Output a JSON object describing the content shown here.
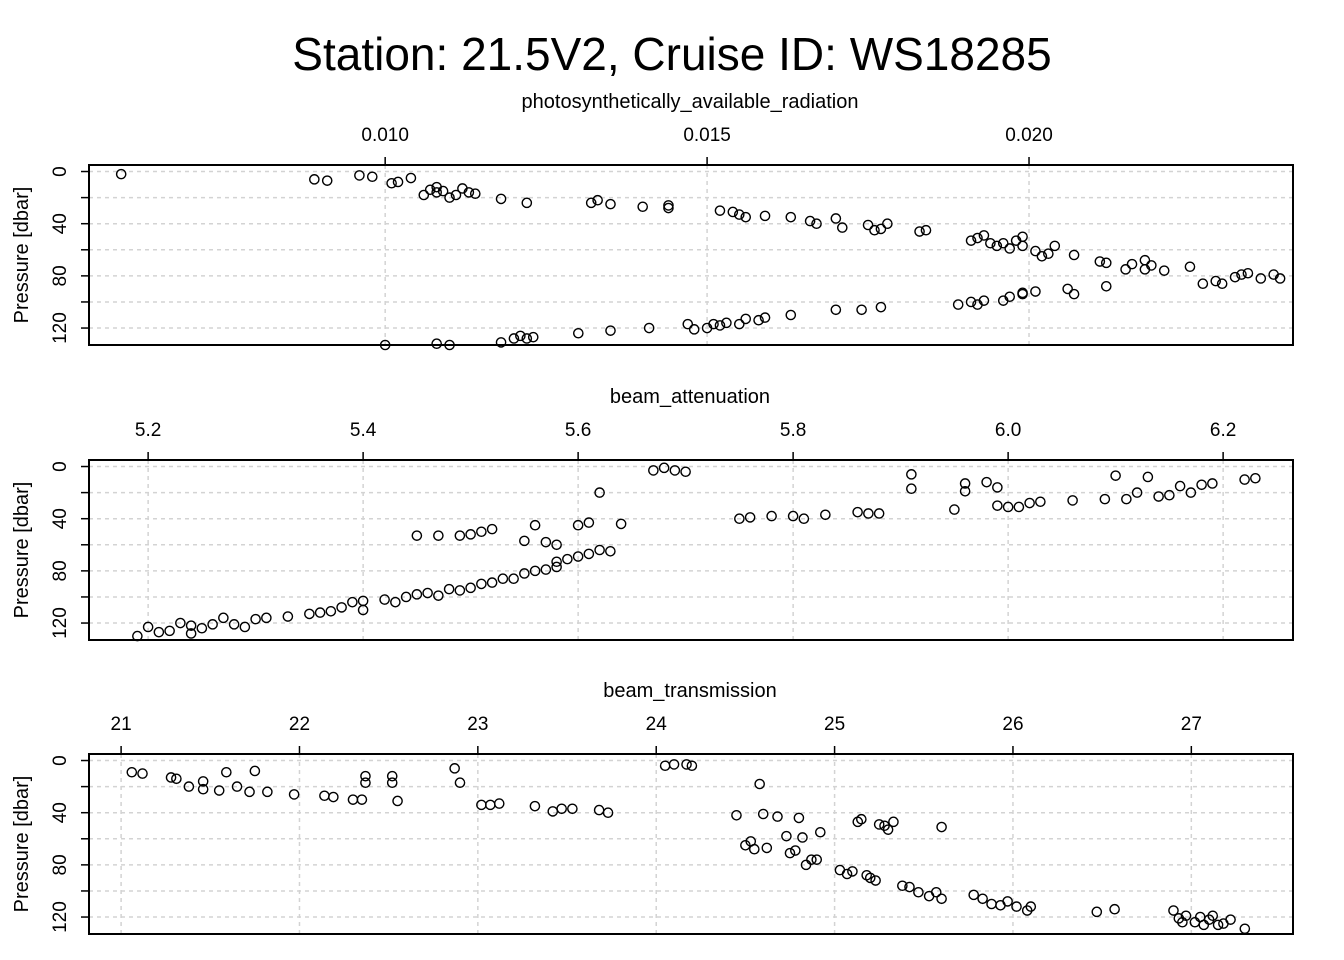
{
  "title": "Station: 21.5V2, Cruise ID: WS18285",
  "chart_data": [
    {
      "type": "scatter",
      "title": "photosynthetically_available_radiation",
      "xlabel": "photosynthetically_available_radiation",
      "ylabel": "Pressure [dbar]",
      "x_ticks": [
        0.01,
        0.015,
        0.02
      ],
      "x_tick_labels": [
        "0.010",
        "0.015",
        "0.020"
      ],
      "y_ticks": [
        0,
        20,
        40,
        60,
        80,
        100,
        120
      ],
      "y_tick_labels": [
        "0",
        "40",
        "80",
        "120"
      ],
      "ylim": [
        133,
        -5
      ],
      "xlim": [
        0.0054,
        0.0241
      ],
      "grid": true,
      "points": [
        [
          0.0059,
          2
        ],
        [
          0.0089,
          6
        ],
        [
          0.0091,
          7
        ],
        [
          0.0096,
          3
        ],
        [
          0.0098,
          4
        ],
        [
          0.0101,
          9
        ],
        [
          0.0102,
          8
        ],
        [
          0.0104,
          5
        ],
        [
          0.0106,
          18
        ],
        [
          0.0107,
          14
        ],
        [
          0.0108,
          12
        ],
        [
          0.0108,
          16
        ],
        [
          0.0109,
          15
        ],
        [
          0.011,
          20
        ],
        [
          0.0111,
          18
        ],
        [
          0.0112,
          13
        ],
        [
          0.0113,
          16
        ],
        [
          0.0114,
          17
        ],
        [
          0.0118,
          21
        ],
        [
          0.0122,
          24
        ],
        [
          0.0132,
          24
        ],
        [
          0.0133,
          22
        ],
        [
          0.0135,
          25
        ],
        [
          0.014,
          27
        ],
        [
          0.0144,
          26
        ],
        [
          0.0144,
          28
        ],
        [
          0.0152,
          30
        ],
        [
          0.0154,
          31
        ],
        [
          0.0155,
          33
        ],
        [
          0.0156,
          35
        ],
        [
          0.0159,
          34
        ],
        [
          0.0163,
          35
        ],
        [
          0.0166,
          38
        ],
        [
          0.0167,
          40
        ],
        [
          0.017,
          36
        ],
        [
          0.0171,
          43
        ],
        [
          0.0175,
          41
        ],
        [
          0.0176,
          45
        ],
        [
          0.0177,
          44
        ],
        [
          0.0178,
          40
        ],
        [
          0.0183,
          46
        ],
        [
          0.0184,
          45
        ],
        [
          0.0191,
          53
        ],
        [
          0.0192,
          51
        ],
        [
          0.0193,
          49
        ],
        [
          0.0194,
          55
        ],
        [
          0.0195,
          57
        ],
        [
          0.0196,
          55
        ],
        [
          0.0197,
          59
        ],
        [
          0.0198,
          53
        ],
        [
          0.0199,
          50
        ],
        [
          0.0199,
          57
        ],
        [
          0.0201,
          61
        ],
        [
          0.0202,
          65
        ],
        [
          0.0203,
          63
        ],
        [
          0.0204,
          57
        ],
        [
          0.0207,
          64
        ],
        [
          0.0211,
          69
        ],
        [
          0.0212,
          70
        ],
        [
          0.0215,
          75
        ],
        [
          0.0216,
          71
        ],
        [
          0.0218,
          75
        ],
        [
          0.0218,
          68
        ],
        [
          0.0219,
          72
        ],
        [
          0.0221,
          76
        ],
        [
          0.0225,
          73
        ],
        [
          0.0227,
          86
        ],
        [
          0.0229,
          84
        ],
        [
          0.023,
          86
        ],
        [
          0.0232,
          81
        ],
        [
          0.0233,
          79
        ],
        [
          0.0234,
          78
        ],
        [
          0.0236,
          82
        ],
        [
          0.0238,
          79
        ],
        [
          0.0239,
          82
        ],
        [
          0.0207,
          94
        ],
        [
          0.0206,
          90
        ],
        [
          0.0212,
          88
        ],
        [
          0.0201,
          92
        ],
        [
          0.0199,
          93
        ],
        [
          0.0199,
          94
        ],
        [
          0.0197,
          96
        ],
        [
          0.0196,
          99
        ],
        [
          0.0193,
          99
        ],
        [
          0.0192,
          102
        ],
        [
          0.0191,
          100
        ],
        [
          0.0189,
          102
        ],
        [
          0.0177,
          104
        ],
        [
          0.0174,
          106
        ],
        [
          0.017,
          106
        ],
        [
          0.0163,
          110
        ],
        [
          0.0159,
          112
        ],
        [
          0.0158,
          114
        ],
        [
          0.0156,
          113
        ],
        [
          0.0155,
          117
        ],
        [
          0.0153,
          116
        ],
        [
          0.0152,
          118
        ],
        [
          0.0151,
          117
        ],
        [
          0.015,
          120
        ],
        [
          0.0148,
          121
        ],
        [
          0.0147,
          117
        ],
        [
          0.0141,
          120
        ],
        [
          0.0135,
          122
        ],
        [
          0.013,
          124
        ],
        [
          0.0123,
          127
        ],
        [
          0.0122,
          128
        ],
        [
          0.0121,
          126
        ],
        [
          0.012,
          128
        ],
        [
          0.0118,
          131
        ],
        [
          0.011,
          133
        ],
        [
          0.0108,
          132
        ],
        [
          0.01,
          133
        ]
      ]
    },
    {
      "type": "scatter",
      "title": "beam_attenuation",
      "xlabel": "beam_attenuation",
      "ylabel": "Pressure [dbar]",
      "x_ticks": [
        5.2,
        5.4,
        5.6,
        5.8,
        6.0,
        6.2
      ],
      "x_tick_labels": [
        "5.2",
        "5.4",
        "5.6",
        "5.8",
        "6.0",
        "6.2"
      ],
      "y_ticks": [
        0,
        20,
        40,
        60,
        80,
        100,
        120
      ],
      "y_tick_labels": [
        "0",
        "40",
        "80",
        "120"
      ],
      "ylim": [
        133,
        -5
      ],
      "xlim": [
        5.145,
        6.265
      ],
      "grid": true,
      "points": [
        [
          5.19,
          130
        ],
        [
          5.2,
          123
        ],
        [
          5.21,
          127
        ],
        [
          5.22,
          126
        ],
        [
          5.23,
          120
        ],
        [
          5.24,
          122
        ],
        [
          5.24,
          128
        ],
        [
          5.25,
          124
        ],
        [
          5.26,
          121
        ],
        [
          5.27,
          116
        ],
        [
          5.28,
          121
        ],
        [
          5.29,
          123
        ],
        [
          5.3,
          117
        ],
        [
          5.31,
          116
        ],
        [
          5.33,
          115
        ],
        [
          5.35,
          113
        ],
        [
          5.36,
          112
        ],
        [
          5.37,
          111
        ],
        [
          5.38,
          108
        ],
        [
          5.39,
          104
        ],
        [
          5.4,
          103
        ],
        [
          5.4,
          110
        ],
        [
          5.42,
          102
        ],
        [
          5.43,
          104
        ],
        [
          5.44,
          100
        ],
        [
          5.45,
          98
        ],
        [
          5.46,
          97
        ],
        [
          5.47,
          99
        ],
        [
          5.48,
          94
        ],
        [
          5.49,
          95
        ],
        [
          5.5,
          93
        ],
        [
          5.51,
          90
        ],
        [
          5.52,
          89
        ],
        [
          5.53,
          86
        ],
        [
          5.54,
          86
        ],
        [
          5.55,
          82
        ],
        [
          5.56,
          80
        ],
        [
          5.57,
          79
        ],
        [
          5.58,
          77
        ],
        [
          5.58,
          73
        ],
        [
          5.59,
          71
        ],
        [
          5.6,
          69
        ],
        [
          5.61,
          67
        ],
        [
          5.62,
          64
        ],
        [
          5.63,
          65
        ],
        [
          5.52,
          48
        ],
        [
          5.51,
          50
        ],
        [
          5.5,
          52
        ],
        [
          5.49,
          53
        ],
        [
          5.47,
          53
        ],
        [
          5.45,
          53
        ],
        [
          5.55,
          57
        ],
        [
          5.56,
          45
        ],
        [
          5.57,
          58
        ],
        [
          5.58,
          60
        ],
        [
          5.6,
          45
        ],
        [
          5.61,
          43
        ],
        [
          5.64,
          44
        ],
        [
          5.62,
          20
        ],
        [
          5.67,
          3
        ],
        [
          5.68,
          1
        ],
        [
          5.69,
          3
        ],
        [
          5.7,
          4
        ],
        [
          5.75,
          40
        ],
        [
          5.76,
          39
        ],
        [
          5.78,
          38
        ],
        [
          5.8,
          38
        ],
        [
          5.81,
          40
        ],
        [
          5.83,
          37
        ],
        [
          5.86,
          35
        ],
        [
          5.87,
          36
        ],
        [
          5.88,
          36
        ],
        [
          5.91,
          6
        ],
        [
          5.91,
          17
        ],
        [
          5.95,
          33
        ],
        [
          5.96,
          13
        ],
        [
          5.96,
          19
        ],
        [
          5.98,
          12
        ],
        [
          5.99,
          30
        ],
        [
          5.99,
          16
        ],
        [
          6.0,
          31
        ],
        [
          6.01,
          31
        ],
        [
          6.02,
          28
        ],
        [
          6.03,
          27
        ],
        [
          6.06,
          26
        ],
        [
          6.09,
          25
        ],
        [
          6.1,
          7
        ],
        [
          6.11,
          25
        ],
        [
          6.12,
          20
        ],
        [
          6.13,
          8
        ],
        [
          6.14,
          23
        ],
        [
          6.15,
          22
        ],
        [
          6.16,
          15
        ],
        [
          6.17,
          20
        ],
        [
          6.18,
          14
        ],
        [
          6.19,
          13
        ],
        [
          6.22,
          10
        ],
        [
          6.23,
          9
        ]
      ]
    },
    {
      "type": "scatter",
      "title": "beam_transmission",
      "xlabel": "beam_transmission",
      "ylabel": "Pressure [dbar]",
      "x_ticks": [
        21,
        22,
        23,
        24,
        25,
        26,
        27
      ],
      "x_tick_labels": [
        "21",
        "22",
        "23",
        "24",
        "25",
        "26",
        "27"
      ],
      "y_ticks": [
        0,
        20,
        40,
        60,
        80,
        100,
        120
      ],
      "y_tick_labels": [
        "0",
        "40",
        "80",
        "120"
      ],
      "ylim": [
        133,
        -5
      ],
      "xlim": [
        20.82,
        27.57
      ],
      "grid": true,
      "points": [
        [
          21.06,
          9
        ],
        [
          21.12,
          10
        ],
        [
          21.28,
          13
        ],
        [
          21.31,
          14
        ],
        [
          21.38,
          20
        ],
        [
          21.46,
          16
        ],
        [
          21.46,
          22
        ],
        [
          21.55,
          23
        ],
        [
          21.59,
          9
        ],
        [
          21.65,
          20
        ],
        [
          21.72,
          24
        ],
        [
          21.75,
          8
        ],
        [
          21.82,
          24
        ],
        [
          21.97,
          26
        ],
        [
          22.14,
          27
        ],
        [
          22.19,
          28
        ],
        [
          22.3,
          30
        ],
        [
          22.35,
          30
        ],
        [
          22.37,
          12
        ],
        [
          22.37,
          17
        ],
        [
          22.52,
          12
        ],
        [
          22.52,
          17
        ],
        [
          22.55,
          31
        ],
        [
          22.87,
          6
        ],
        [
          22.9,
          17
        ],
        [
          23.02,
          34
        ],
        [
          23.07,
          34
        ],
        [
          23.12,
          33
        ],
        [
          23.32,
          35
        ],
        [
          23.42,
          39
        ],
        [
          23.47,
          37
        ],
        [
          23.53,
          37
        ],
        [
          23.68,
          38
        ],
        [
          23.73,
          40
        ],
        [
          24.05,
          4
        ],
        [
          24.1,
          3
        ],
        [
          24.17,
          3
        ],
        [
          24.2,
          4
        ],
        [
          24.45,
          42
        ],
        [
          24.5,
          65
        ],
        [
          24.53,
          62
        ],
        [
          24.55,
          68
        ],
        [
          24.58,
          18
        ],
        [
          24.6,
          41
        ],
        [
          24.62,
          67
        ],
        [
          24.68,
          43
        ],
        [
          24.73,
          58
        ],
        [
          24.75,
          71
        ],
        [
          24.78,
          69
        ],
        [
          24.8,
          44
        ],
        [
          24.82,
          59
        ],
        [
          24.84,
          80
        ],
        [
          24.87,
          76
        ],
        [
          24.9,
          76
        ],
        [
          24.92,
          55
        ],
        [
          25.03,
          84
        ],
        [
          25.07,
          87
        ],
        [
          25.1,
          85
        ],
        [
          25.13,
          47
        ],
        [
          25.15,
          45
        ],
        [
          25.18,
          88
        ],
        [
          25.2,
          90
        ],
        [
          25.23,
          92
        ],
        [
          25.25,
          49
        ],
        [
          25.28,
          50
        ],
        [
          25.3,
          53
        ],
        [
          25.33,
          47
        ],
        [
          25.38,
          96
        ],
        [
          25.42,
          97
        ],
        [
          25.47,
          101
        ],
        [
          25.53,
          104
        ],
        [
          25.57,
          101
        ],
        [
          25.6,
          106
        ],
        [
          25.6,
          51
        ],
        [
          25.78,
          103
        ],
        [
          25.83,
          106
        ],
        [
          25.88,
          110
        ],
        [
          25.93,
          111
        ],
        [
          25.97,
          108
        ],
        [
          26.02,
          112
        ],
        [
          26.08,
          115
        ],
        [
          26.1,
          112
        ],
        [
          26.47,
          116
        ],
        [
          26.57,
          114
        ],
        [
          26.9,
          115
        ],
        [
          26.93,
          121
        ],
        [
          26.95,
          124
        ],
        [
          26.97,
          119
        ],
        [
          27.02,
          124
        ],
        [
          27.05,
          120
        ],
        [
          27.07,
          126
        ],
        [
          27.1,
          122
        ],
        [
          27.12,
          119
        ],
        [
          27.15,
          126
        ],
        [
          27.18,
          125
        ],
        [
          27.22,
          122
        ],
        [
          27.3,
          129
        ]
      ]
    }
  ]
}
